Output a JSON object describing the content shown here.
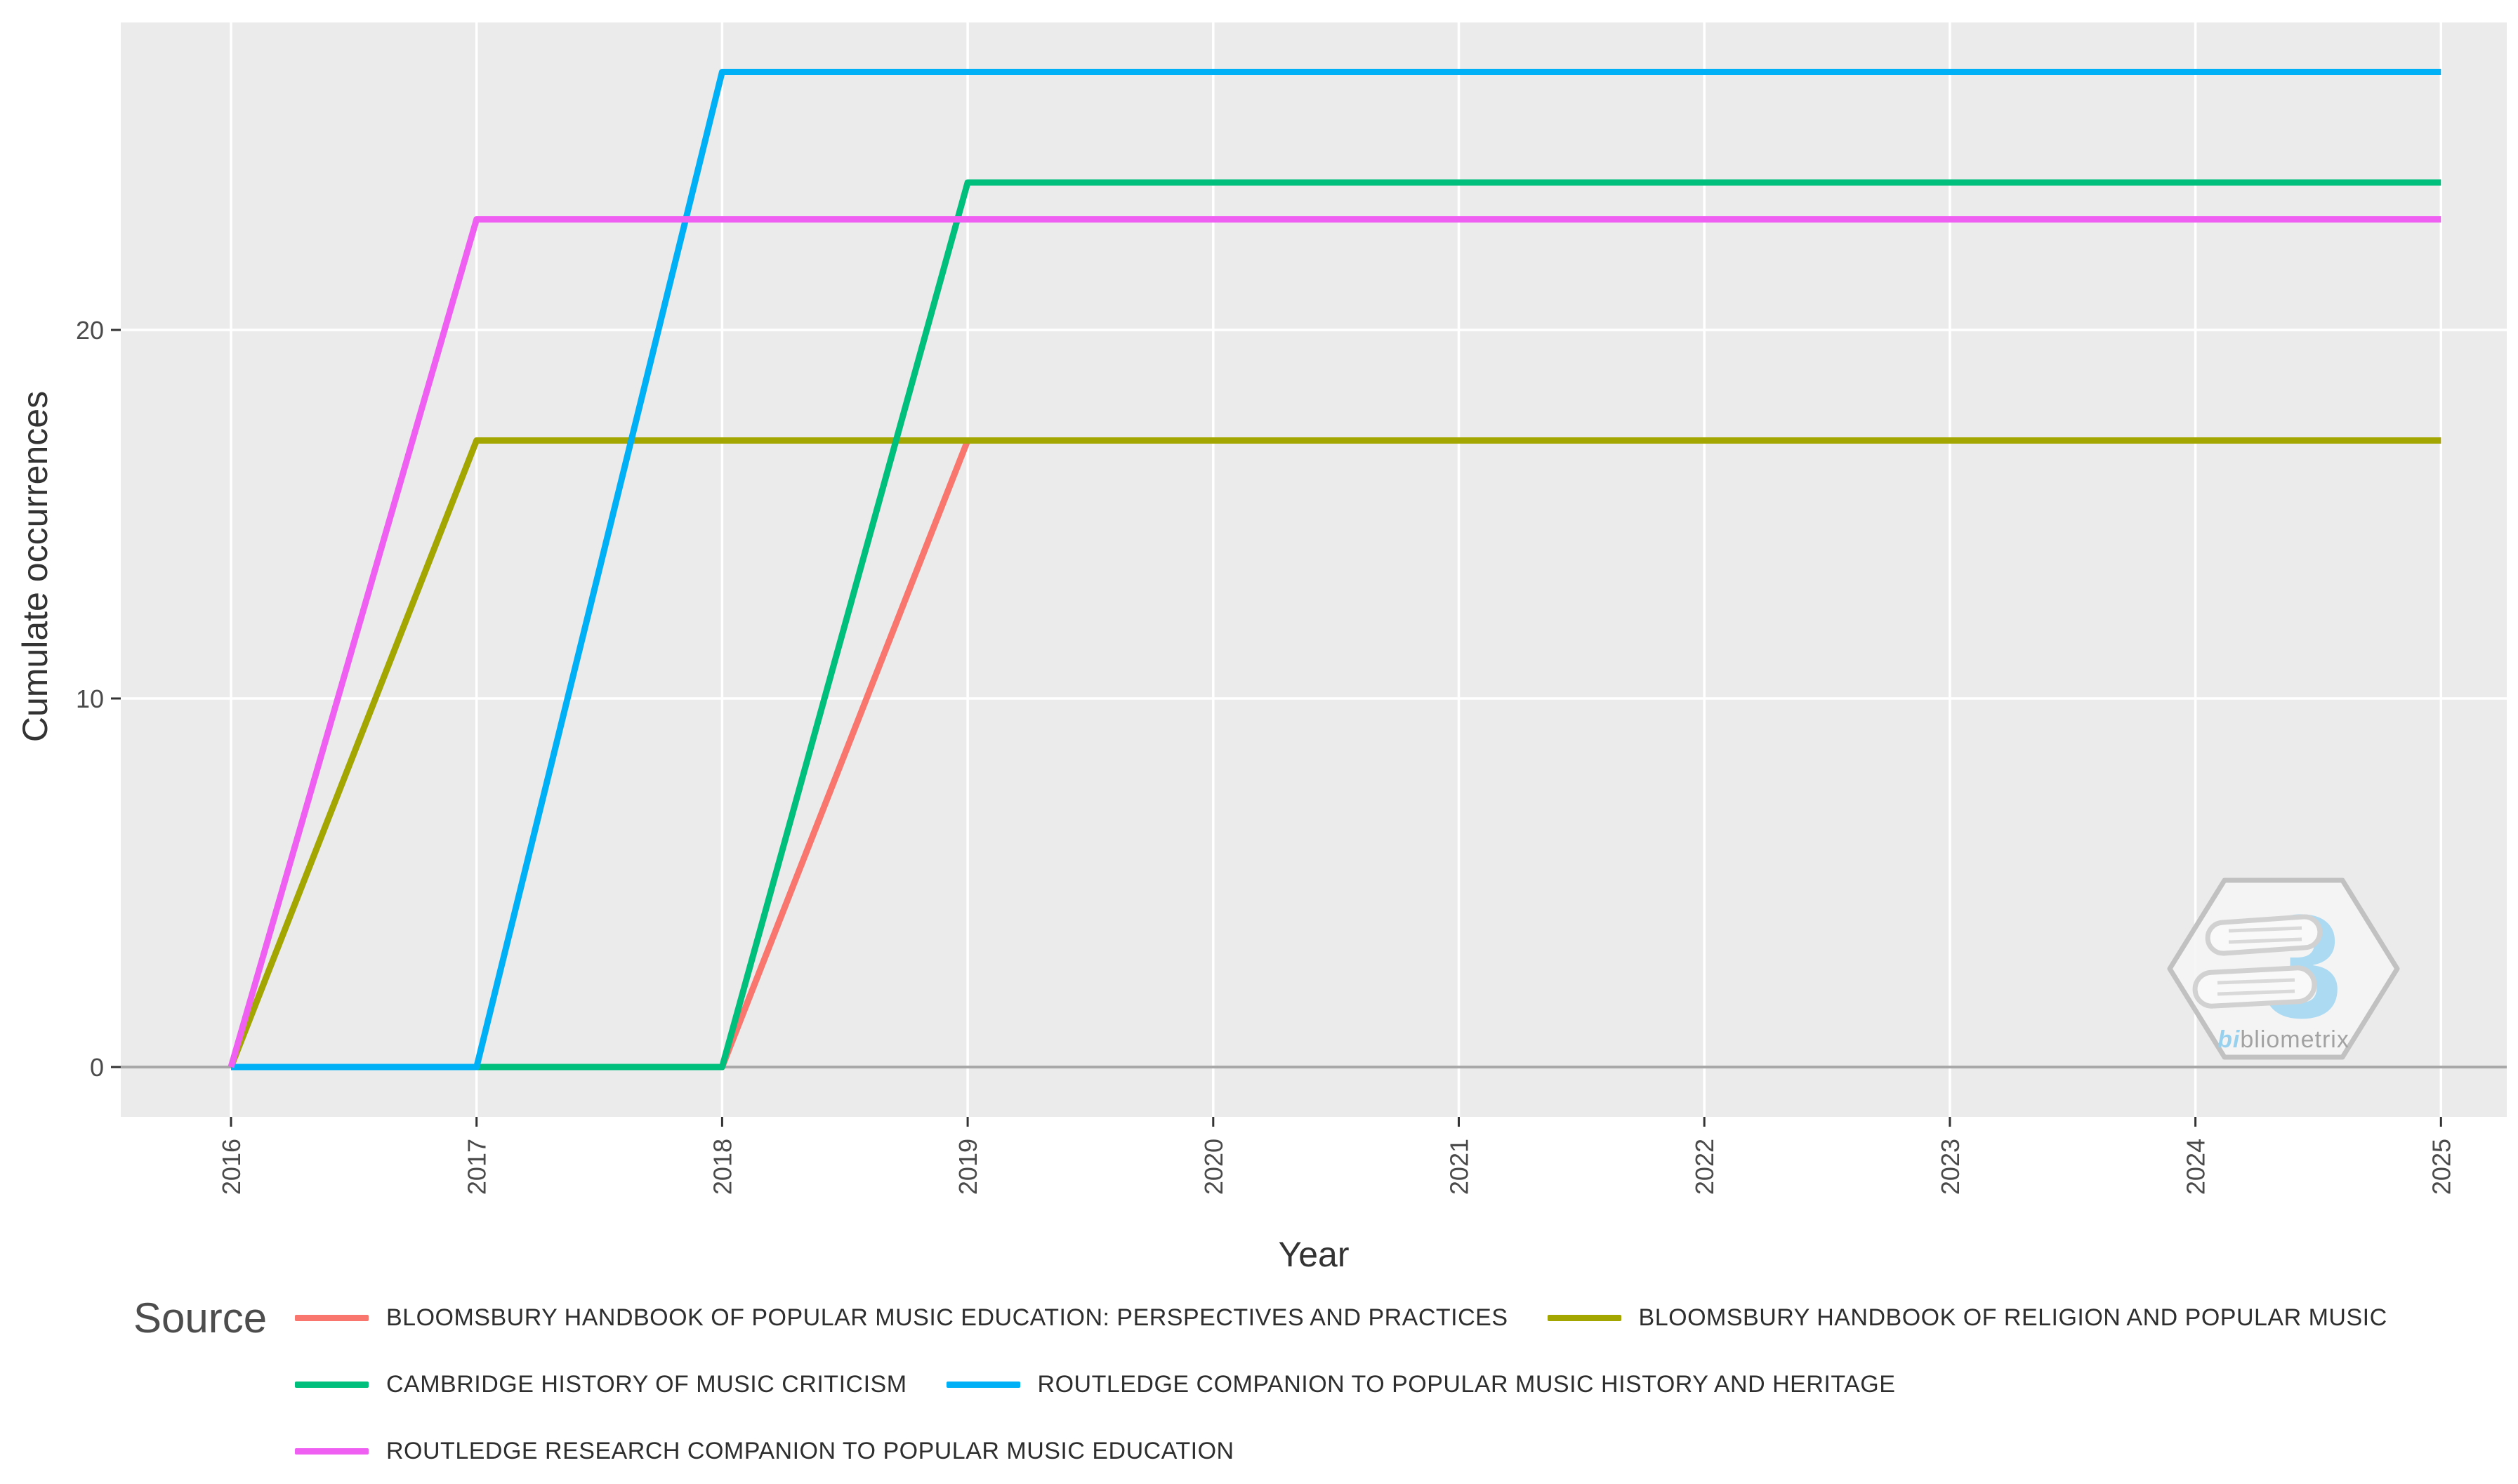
{
  "chart_data": {
    "type": "line",
    "title": "",
    "xlabel": "Year",
    "ylabel": "Cumulate occurrences",
    "x": [
      2016,
      2017,
      2018,
      2019,
      2020,
      2021,
      2022,
      2023,
      2024,
      2025
    ],
    "x_tick_labels": [
      "2016",
      "2017",
      "2018",
      "2019",
      "2020",
      "2021",
      "2022",
      "2023",
      "2024",
      "2025"
    ],
    "y_ticks": [
      0,
      10,
      20
    ],
    "y_tick_labels": [
      "0",
      "10",
      "20"
    ],
    "xlim": [
      2015.55,
      2025.27
    ],
    "ylim": [
      -1.35,
      28.4
    ],
    "grid": "white major gridlines on light gray panel",
    "panel_background": "#EBEBEB",
    "gridline_color": "#FFFFFF",
    "zero_line_color": "#A8A8A8",
    "tick_color": "#333333",
    "tick_label_color": "#4a4a4a",
    "legend_position": "bottom",
    "series": [
      {
        "name": "BLOOMSBURY HANDBOOK OF POPULAR MUSIC EDUCATION: PERSPECTIVES AND PRACTICES",
        "color": "#F8766D",
        "values": [
          0,
          0,
          0,
          17,
          17,
          17,
          17,
          17,
          17,
          17
        ]
      },
      {
        "name": "BLOOMSBURY HANDBOOK OF RELIGION AND POPULAR MUSIC",
        "color": "#A3A500",
        "values": [
          0,
          17,
          17,
          17,
          17,
          17,
          17,
          17,
          17,
          17
        ]
      },
      {
        "name": "CAMBRIDGE HISTORY OF MUSIC CRITICISM",
        "color": "#00BF7D",
        "values": [
          0,
          0,
          0,
          24,
          24,
          24,
          24,
          24,
          24,
          24
        ]
      },
      {
        "name": "ROUTLEDGE COMPANION TO POPULAR MUSIC HISTORY AND HERITAGE",
        "color": "#00B0F6",
        "values": [
          0,
          0,
          27,
          27,
          27,
          27,
          27,
          27,
          27,
          27
        ]
      },
      {
        "name": "ROUTLEDGE RESEARCH COMPANION TO POPULAR MUSIC EDUCATION",
        "color": "#EE5FF2",
        "values": [
          0,
          23,
          23,
          23,
          23,
          23,
          23,
          23,
          23,
          23
        ]
      }
    ]
  },
  "axes": {
    "x_title": "Year",
    "y_title": "Cumulate occurrences"
  },
  "legend": {
    "title": "Source",
    "rows": [
      [
        0,
        1
      ],
      [
        2,
        3
      ],
      [
        4
      ]
    ]
  },
  "watermark": {
    "monogram": "bi",
    "label": "bliometrix",
    "number": "3",
    "hex_outline_color": "#bdbdbd",
    "number_color": "#a6d9f3"
  }
}
